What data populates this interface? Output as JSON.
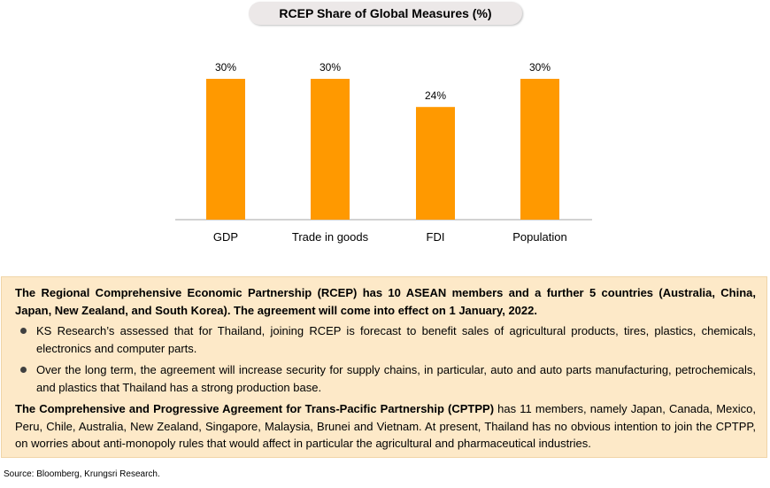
{
  "chart_data": {
    "type": "bar",
    "title": "RCEP Share of Global Measures (%)",
    "categories": [
      "GDP",
      "Trade in goods",
      "FDI",
      "Population"
    ],
    "values": [
      30,
      30,
      24,
      30
    ],
    "data_labels": [
      "30%",
      "30%",
      "24%",
      "30%"
    ],
    "ylim": [
      0,
      30
    ],
    "grid": false,
    "bar_color": "#ff9900"
  },
  "info": {
    "rcep_intro": "The Regional Comprehensive Economic Partnership (RCEP) has 10 ASEAN members and a further 5 countries (Australia, China, Japan, New Zealand, and South Korea). The agreement will come into effect on 1 January, 2022.",
    "bullets": [
      "KS Research’s assessed that for Thailand, joining RCEP is forecast to benefit sales of agricultural products, tires, plastics, chemicals, electronics and computer parts.",
      "Over the long term, the agreement will increase security for supply chains, in particular, auto and auto parts manufacturing, petrochemicals, and plastics that Thailand has a strong production base."
    ],
    "cptpp_bold": "The Comprehensive and Progressive Agreement for Trans-Pacific Partnership (CPTPP)",
    "cptpp_rest": " has 11 members, namely Japan, Canada, Mexico, Peru, Chile, Australia, New Zealand, Singapore, Malaysia, Brunei and Vietnam. At present, Thailand has no obvious intention to join the CPTPP, on worries about anti-monopoly rules that would affect in particular the agricultural and pharmaceutical industries."
  },
  "source": "Source: Bloomberg, Krungsri Research."
}
